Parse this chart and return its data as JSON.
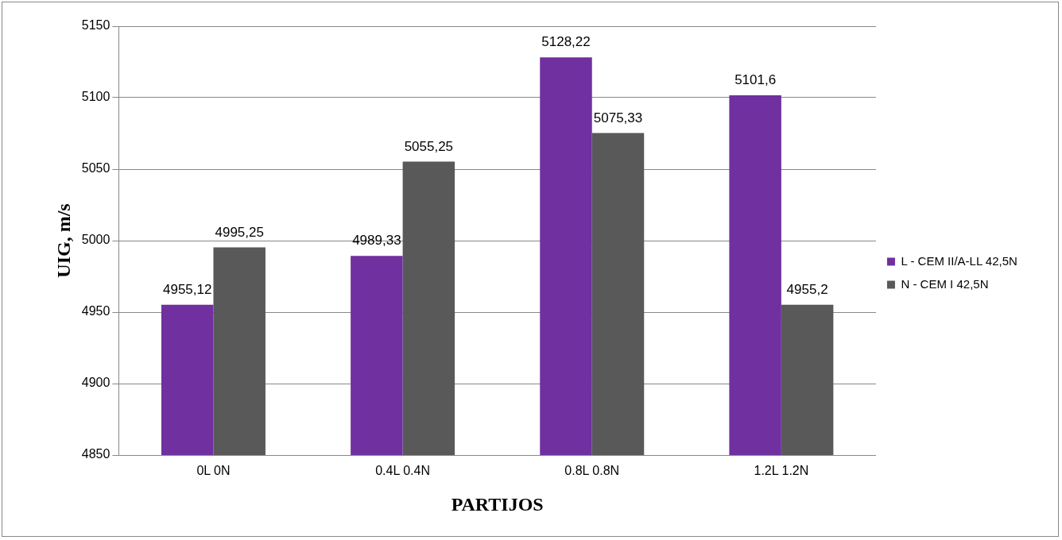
{
  "chart_data": {
    "type": "bar",
    "xlabel": "PARTIJOS",
    "ylabel": "UIG, m/s",
    "categories": [
      "0L 0N",
      "0.4L 0.4N",
      "0.8L 0.8N",
      "1.2L 1.2N"
    ],
    "series": [
      {
        "name": "L - CEM II/A-LL 42,5N",
        "color": "#7030a0",
        "values": [
          4955.12,
          4989.33,
          5128.22,
          5101.6
        ],
        "value_labels": [
          "4955,12",
          "4989,33",
          "5128,22",
          "5101,6"
        ]
      },
      {
        "name": "N - CEM I 42,5N",
        "color": "#595959",
        "values": [
          4995.25,
          5055.25,
          5075.33,
          4955.2
        ],
        "value_labels": [
          "4995,25",
          "5055,25",
          "5075,33",
          "4955,2"
        ]
      }
    ],
    "ylim": [
      4850,
      5150
    ],
    "yticks": [
      4850,
      4900,
      4950,
      5000,
      5050,
      5100,
      5150
    ],
    "grid": "y",
    "legend": "right"
  }
}
